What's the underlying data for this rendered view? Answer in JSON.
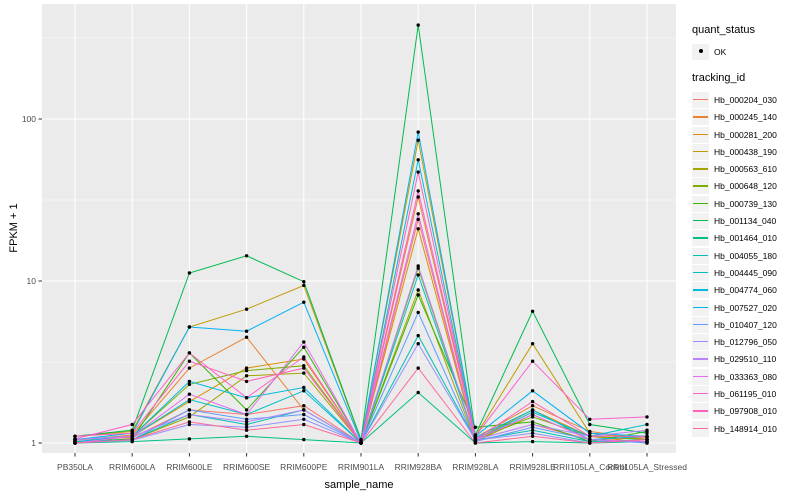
{
  "figure": {
    "background": "#FFFFFF",
    "panel_background": "#EBEBEB",
    "grid_color": "#FFFFFF",
    "axis_text_color": "#4D4D4D",
    "tick_mark_color": "#333333",
    "point_color": "#000000"
  },
  "chart_data": {
    "type": "line",
    "title": "",
    "xlabel": "sample_name",
    "ylabel": "FPKM + 1",
    "y_scale": "log10",
    "y_tick_labels": [
      "1",
      "10",
      "100"
    ],
    "y_tick_values": [
      1,
      10,
      100
    ],
    "y_minor_values": [
      3.1623,
      31.623,
      316.23
    ],
    "ylim": [
      1,
      512
    ],
    "grid": true,
    "legend_position": "right",
    "point_marker": "black dot on every value (quant_status OK)",
    "categories": [
      "PB350LA",
      "RRIM600LA",
      "RRIM600LE",
      "RRIM600SE",
      "RRIM600PE",
      "RRIM901LA",
      "RRIM928BA",
      "RRIM928LA",
      "RRIM928LE",
      "RRII105LA_Control",
      "RRII105LA_Stressed"
    ],
    "series": [
      {
        "name": "Hb_000204_030",
        "color": "#F8766D",
        "values": [
          1.05,
          1.08,
          1.6,
          1.5,
          1.7,
          1.0,
          24,
          1.05,
          1.3,
          1.05,
          1.08
        ]
      },
      {
        "name": "Hb_000245_140",
        "color": "#EA8331",
        "values": [
          1.04,
          1.12,
          2.9,
          4.5,
          1.6,
          1.0,
          33,
          1.08,
          1.7,
          1.18,
          1.05
        ]
      },
      {
        "name": "Hb_000281_200",
        "color": "#D89000",
        "values": [
          1.0,
          1.1,
          1.8,
          2.9,
          3.3,
          1.0,
          21,
          1.05,
          1.6,
          1.1,
          1.0
        ]
      },
      {
        "name": "Hb_000438_190",
        "color": "#C09B00",
        "values": [
          1.1,
          1.18,
          5.2,
          6.7,
          9.4,
          1.04,
          74,
          1.1,
          4.1,
          1.15,
          1.05
        ]
      },
      {
        "name": "Hb_000563_610",
        "color": "#A3A500",
        "values": [
          1.0,
          1.05,
          1.45,
          2.6,
          2.7,
          1.0,
          8.8,
          1.02,
          1.5,
          1.05,
          1.02
        ]
      },
      {
        "name": "Hb_000648_120",
        "color": "#7CAE00",
        "values": [
          1.05,
          1.1,
          2.3,
          2.8,
          3.0,
          1.0,
          12,
          1.05,
          1.45,
          1.1,
          1.05
        ]
      },
      {
        "name": "Hb_000739_130",
        "color": "#39B600",
        "values": [
          1.02,
          1.06,
          3.6,
          1.6,
          3.9,
          1.0,
          8.2,
          1.25,
          1.35,
          1.02,
          1.18
        ]
      },
      {
        "name": "Hb_001134_040",
        "color": "#00BB4E",
        "values": [
          1.1,
          1.2,
          11.2,
          14.3,
          9.9,
          1.05,
          380,
          1.12,
          6.5,
          1.3,
          1.15
        ]
      },
      {
        "name": "Hb_001464_010",
        "color": "#00C087",
        "values": [
          1.0,
          1.02,
          1.06,
          1.1,
          1.05,
          1.0,
          2.05,
          1.0,
          1.02,
          1.0,
          1.02
        ]
      },
      {
        "name": "Hb_004055_180",
        "color": "#00C0B2",
        "values": [
          1.02,
          1.05,
          1.5,
          1.3,
          1.6,
          1.0,
          4.6,
          1.04,
          1.2,
          1.02,
          1.05
        ]
      },
      {
        "name": "Hb_004445_090",
        "color": "#00BFC4",
        "values": [
          1.05,
          1.1,
          1.85,
          1.5,
          2.1,
          1.0,
          10.9,
          1.05,
          1.55,
          1.1,
          1.3
        ]
      },
      {
        "name": "Hb_004774_060",
        "color": "#00BAE0",
        "values": [
          1.02,
          1.1,
          2.4,
          1.9,
          2.2,
          1.0,
          56,
          1.08,
          1.6,
          1.05,
          1.1
        ]
      },
      {
        "name": "Hb_007527_020",
        "color": "#00B2F3",
        "values": [
          1.05,
          1.15,
          5.2,
          4.9,
          7.4,
          1.02,
          83,
          1.1,
          2.1,
          1.15,
          1.1
        ]
      },
      {
        "name": "Hb_010407_120",
        "color": "#619CFF",
        "values": [
          1.0,
          1.05,
          1.6,
          1.4,
          1.5,
          1.0,
          6.4,
          1.02,
          1.25,
          1.05,
          1.0
        ]
      },
      {
        "name": "Hb_012796_050",
        "color": "#9590FF",
        "values": [
          1.0,
          1.04,
          1.3,
          1.25,
          1.4,
          1.0,
          4.1,
          1.04,
          1.15,
          1.0,
          1.05
        ]
      },
      {
        "name": "Hb_029510_110",
        "color": "#B983FF",
        "values": [
          1.05,
          1.1,
          1.5,
          1.35,
          1.6,
          1.0,
          12.4,
          1.05,
          1.3,
          1.1,
          1.2
        ]
      },
      {
        "name": "Hb_033363_080",
        "color": "#E76BF3",
        "values": [
          1.0,
          1.1,
          2.0,
          1.5,
          4.2,
          1.0,
          26,
          1.05,
          1.5,
          1.05,
          1.02
        ]
      },
      {
        "name": "Hb_061195_010",
        "color": "#FD61D1",
        "values": [
          1.06,
          1.3,
          3.6,
          1.9,
          3.4,
          1.0,
          36,
          1.1,
          3.2,
          1.4,
          1.45
        ]
      },
      {
        "name": "Hb_097908_010",
        "color": "#FF62BC",
        "values": [
          1.1,
          1.15,
          3.2,
          2.4,
          2.9,
          1.0,
          47,
          1.05,
          1.8,
          1.1,
          1.1
        ]
      },
      {
        "name": "Hb_148914_010",
        "color": "#FF6A98",
        "values": [
          1.0,
          1.05,
          1.35,
          1.2,
          1.3,
          1.0,
          2.9,
          1.0,
          1.1,
          1.0,
          1.05
        ]
      }
    ]
  },
  "legend": {
    "quant_status": {
      "title": "quant_status",
      "items": [
        {
          "label": "OK",
          "symbol": "black-point"
        }
      ]
    },
    "tracking_id": {
      "title": "tracking_id"
    }
  }
}
